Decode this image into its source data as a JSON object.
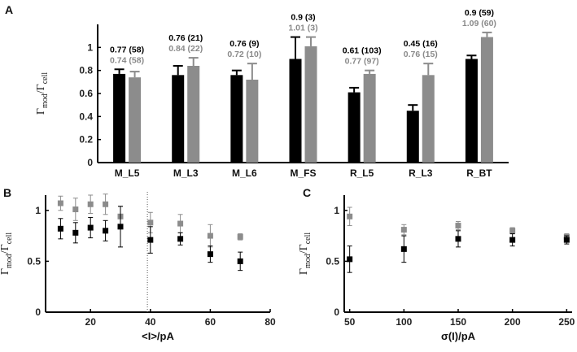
{
  "colors": {
    "series1": "#000000",
    "series2": "#8c8c8c",
    "axis": "#000000",
    "divider": "#555555"
  },
  "chart_data": [
    {
      "panel": "A",
      "type": "bar",
      "ylabel_main": "Γ",
      "ylabel_num_sub": "mod",
      "ylabel_sep": "/Γ",
      "ylabel_den_sub": "cell",
      "ylim": [
        0,
        1.2
      ],
      "yticks": [
        "0",
        "0.2",
        "0.4",
        "0.6",
        "0.8",
        "1"
      ],
      "categories": [
        "M_L5",
        "M_L3",
        "M_L6",
        "M_FS",
        "R_L5",
        "R_L3",
        "R_BT"
      ],
      "series": [
        {
          "name": "black",
          "values": [
            0.77,
            0.76,
            0.76,
            0.9,
            0.61,
            0.45,
            0.9
          ],
          "errors": [
            0.04,
            0.08,
            0.04,
            0.19,
            0.04,
            0.05,
            0.03
          ],
          "labels": [
            "0.77 (58)",
            "0.76 (21)",
            "0.76 (9)",
            "0.9 (3)",
            "0.61 (103)",
            "0.45 (16)",
            "0.9 (59)"
          ]
        },
        {
          "name": "gray",
          "values": [
            0.74,
            0.84,
            0.72,
            1.01,
            0.77,
            0.76,
            1.09
          ],
          "errors": [
            0.05,
            0.07,
            0.14,
            0.08,
            0.03,
            0.1,
            0.04
          ],
          "labels": [
            "0.74 (58)",
            "0.84 (22)",
            "0.72 (10)",
            "1.01 (3)",
            "0.77 (97)",
            "0.76 (15)",
            "1.09 (60)"
          ]
        }
      ]
    },
    {
      "panel": "B",
      "type": "scatter",
      "xlabel": "<I>/pA",
      "ylabel_main": "Γ",
      "ylabel_num_sub": "mod",
      "ylabel_sep": "/Γ",
      "ylabel_den_sub": "cell",
      "xlim": [
        5,
        80
      ],
      "ylim": [
        0,
        1.15
      ],
      "xticks": [
        "20",
        "40",
        "60",
        "80"
      ],
      "yticks": [
        "0",
        "0.5",
        "1"
      ],
      "divider_x": 39,
      "series": [
        {
          "name": "gray",
          "x": [
            10,
            15,
            20,
            25,
            30,
            40,
            50,
            60,
            70
          ],
          "y": [
            1.07,
            1.01,
            1.06,
            1.06,
            0.94,
            0.88,
            0.87,
            0.75,
            0.74
          ],
          "err": [
            0.07,
            0.11,
            0.09,
            0.1,
            0.1,
            0.1,
            0.09,
            0.11,
            0.03
          ]
        },
        {
          "name": "black",
          "x": [
            10,
            15,
            20,
            25,
            30,
            40,
            50,
            60,
            70
          ],
          "y": [
            0.82,
            0.78,
            0.83,
            0.8,
            0.84,
            0.71,
            0.72,
            0.57,
            0.5
          ],
          "err": [
            0.1,
            0.1,
            0.1,
            0.1,
            0.2,
            0.13,
            0.06,
            0.08,
            0.09
          ]
        }
      ]
    },
    {
      "panel": "C",
      "type": "scatter",
      "xlabel": "σ(I)/pA",
      "ylabel_main": "Γ",
      "ylabel_num_sub": "mod",
      "ylabel_sep": "/Γ",
      "ylabel_den_sub": "cell",
      "xlim": [
        45,
        255
      ],
      "ylim": [
        0,
        1.15
      ],
      "xticks": [
        "50",
        "100",
        "150",
        "200",
        "250"
      ],
      "yticks": [
        "0",
        "0.5",
        "1"
      ],
      "series": [
        {
          "name": "gray",
          "x": [
            50,
            100,
            150,
            200,
            250
          ],
          "y": [
            0.94,
            0.81,
            0.85,
            0.8,
            0.74
          ],
          "err": [
            0.09,
            0.05,
            0.04,
            0.03,
            0.03
          ]
        },
        {
          "name": "black",
          "x": [
            50,
            100,
            150,
            200,
            250
          ],
          "y": [
            0.52,
            0.62,
            0.72,
            0.71,
            0.71
          ],
          "err": [
            0.13,
            0.13,
            0.08,
            0.06,
            0.04
          ]
        }
      ]
    }
  ]
}
